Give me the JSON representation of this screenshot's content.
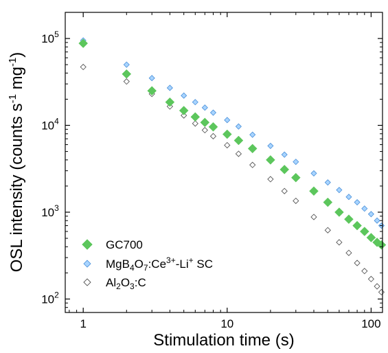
{
  "chart_data": {
    "type": "scatter",
    "title": "",
    "xlabel": "Stimulation time (s)",
    "ylabel": "OSL intensity (counts s⁻¹ mg⁻¹)",
    "xscale": "log",
    "yscale": "log",
    "xlim": [
      0.75,
      120
    ],
    "ylim": [
      70,
      200000
    ],
    "x_ticks": [
      {
        "value": 1,
        "label": "1"
      },
      {
        "value": 10,
        "label": "10"
      },
      {
        "value": 100,
        "label": "100"
      }
    ],
    "y_ticks": [
      {
        "value": 100,
        "base": "10",
        "exp": "2"
      },
      {
        "value": 1000,
        "base": "10",
        "exp": "3"
      },
      {
        "value": 10000,
        "base": "10",
        "exp": "4"
      },
      {
        "value": 100000,
        "base": "10",
        "exp": "5"
      }
    ],
    "grid": false,
    "legend_position": "lower-left",
    "series": [
      {
        "name": "GC700",
        "label_parts": [
          {
            "t": "GC700",
            "s": "n"
          }
        ],
        "marker": "diamond-filled-large",
        "color": "#5cc65c",
        "points": [
          [
            1,
            88000
          ],
          [
            2,
            39000
          ],
          [
            3,
            25000
          ],
          [
            4,
            18500
          ],
          [
            5,
            14800
          ],
          [
            6,
            12500
          ],
          [
            7,
            10800
          ],
          [
            8,
            9600
          ],
          [
            10,
            7900
          ],
          [
            12,
            6700
          ],
          [
            15,
            5400
          ],
          [
            20,
            4000
          ],
          [
            25,
            3100
          ],
          [
            30,
            2500
          ],
          [
            40,
            1750
          ],
          [
            50,
            1300
          ],
          [
            60,
            1000
          ],
          [
            70,
            830
          ],
          [
            80,
            700
          ],
          [
            90,
            600
          ],
          [
            100,
            510
          ],
          [
            110,
            450
          ],
          [
            118,
            420
          ]
        ]
      },
      {
        "name": "MgB4O7:Ce3+-Li+ SC",
        "label_parts": [
          {
            "t": "MgB",
            "s": "n"
          },
          {
            "t": "4",
            "s": "sub"
          },
          {
            "t": "O",
            "s": "n"
          },
          {
            "t": "7",
            "s": "sub"
          },
          {
            "t": ":Ce",
            "s": "n"
          },
          {
            "t": "3+",
            "s": "sup"
          },
          {
            "t": "-Li",
            "s": "n"
          },
          {
            "t": "+",
            "s": "sup"
          },
          {
            "t": " SC",
            "s": "n"
          }
        ],
        "marker": "diamond-filled-small",
        "color": "#a8d4ff",
        "stroke": "#4a90d9",
        "points": [
          [
            1,
            95000
          ],
          [
            2,
            50000
          ],
          [
            3,
            35000
          ],
          [
            4,
            27000
          ],
          [
            5,
            22000
          ],
          [
            6,
            18500
          ],
          [
            7,
            16000
          ],
          [
            8,
            14000
          ],
          [
            10,
            11500
          ],
          [
            12,
            9700
          ],
          [
            15,
            7800
          ],
          [
            20,
            5800
          ],
          [
            25,
            4600
          ],
          [
            30,
            3800
          ],
          [
            40,
            2800
          ],
          [
            50,
            2200
          ],
          [
            60,
            1800
          ],
          [
            70,
            1500
          ],
          [
            80,
            1300
          ],
          [
            90,
            1100
          ],
          [
            100,
            950
          ],
          [
            110,
            800
          ],
          [
            118,
            700
          ]
        ]
      },
      {
        "name": "Al2O3:C",
        "label_parts": [
          {
            "t": "Al",
            "s": "n"
          },
          {
            "t": "2",
            "s": "sub"
          },
          {
            "t": "O",
            "s": "n"
          },
          {
            "t": "3",
            "s": "sub"
          },
          {
            "t": ":C",
            "s": "n"
          }
        ],
        "marker": "diamond-open",
        "color": "#ffffff",
        "stroke": "#555555",
        "points": [
          [
            1,
            47000
          ],
          [
            2,
            32000
          ],
          [
            3,
            23000
          ],
          [
            4,
            16500
          ],
          [
            5,
            13000
          ],
          [
            6,
            10500
          ],
          [
            7,
            8800
          ],
          [
            8,
            7500
          ],
          [
            10,
            5900
          ],
          [
            12,
            4700
          ],
          [
            15,
            3500
          ],
          [
            20,
            2400
          ],
          [
            25,
            1750
          ],
          [
            30,
            1350
          ],
          [
            40,
            880
          ],
          [
            50,
            620
          ],
          [
            60,
            450
          ],
          [
            70,
            340
          ],
          [
            80,
            260
          ],
          [
            90,
            210
          ],
          [
            100,
            170
          ],
          [
            110,
            140
          ],
          [
            118,
            120
          ]
        ]
      }
    ]
  }
}
